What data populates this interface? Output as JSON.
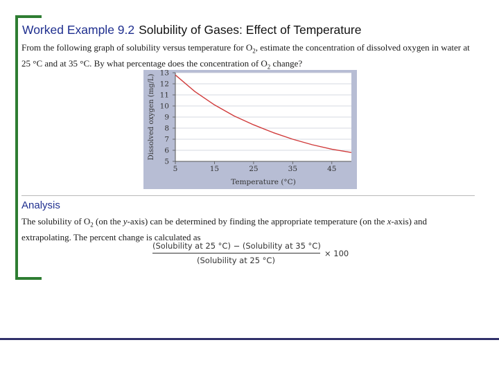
{
  "slide": {
    "title_label": "Worked Example 9.2",
    "title_text": "Solubility of Gases: Effect of Temperature",
    "question": {
      "part1": "From the following graph of solubility versus temperature for O",
      "sub1": "2",
      "part2": ", estimate the concentration of dissolved oxygen in water at 25 °C and at 35 °C. By what percentage does the concentration of O",
      "sub2": "2",
      "part3": " change?"
    },
    "analysis_heading": "Analysis",
    "analysis": {
      "part1": "The solubility of O",
      "sub1": "2",
      "part2": " (on the ",
      "y_italic": "y",
      "part3": "-axis) can be determined by finding the appropriate temperature (on the ",
      "x_italic": "x",
      "part4": "-axis) and extrapolating. The percent change is calculated as"
    },
    "formula": {
      "numerator": "(Solubility at 25 °C)  −  (Solubility at 35 °C)",
      "denominator": "(Solubility at 25 °C)",
      "multiplier": "× 100"
    }
  },
  "colors": {
    "title_blue": "#1f2f8f",
    "bracket_green": "#2e7d32",
    "chart_frame": "#b7bdd4",
    "plot_bg": "#ffffff",
    "curve_red": "#d03a3a",
    "footer_rule": "#30306a"
  },
  "chart_data": {
    "type": "line",
    "xlabel": "Temperature (°C)",
    "ylabel": "Dissolved oxygen (mg/L)",
    "x_ticks": [
      5,
      15,
      25,
      35,
      45
    ],
    "y_ticks": [
      5,
      6,
      7,
      8,
      9,
      10,
      11,
      12,
      13
    ],
    "xlim": [
      5,
      50
    ],
    "ylim": [
      5,
      13
    ],
    "grid": true,
    "series": [
      {
        "x": [
          5,
          10,
          15,
          20,
          25,
          30,
          35,
          40,
          45,
          50
        ],
        "y": [
          12.8,
          11.3,
          10.1,
          9.1,
          8.3,
          7.6,
          7.0,
          6.5,
          6.1,
          5.8
        ]
      }
    ]
  }
}
